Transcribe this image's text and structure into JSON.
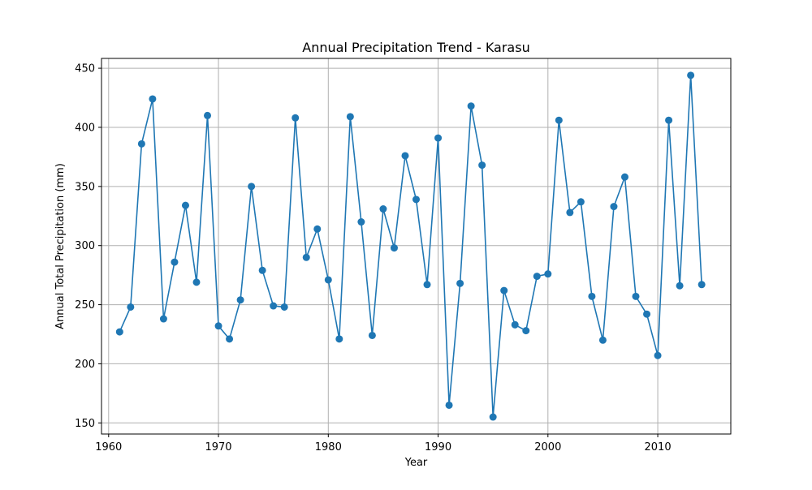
{
  "chart_data": {
    "type": "line",
    "title": "Annual Precipitation Trend - Karasu",
    "xlabel": "Year",
    "ylabel": "Annual Total Precipitation (mm)",
    "xlim": [
      1959.35,
      2016.65
    ],
    "ylim": [
      140.6,
      458.3
    ],
    "xticks": [
      1960,
      1970,
      1980,
      1990,
      2000,
      2010
    ],
    "yticks": [
      150,
      200,
      250,
      300,
      350,
      400,
      450
    ],
    "grid": true,
    "marker": "circle",
    "line_color": "#1f77b4",
    "series": [
      {
        "x": [
          1961,
          1962,
          1963,
          1964,
          1965,
          1966,
          1967,
          1968,
          1969,
          1970,
          1971,
          1972,
          1973,
          1974,
          1975,
          1976,
          1977,
          1978,
          1979,
          1980,
          1981,
          1982,
          1983,
          1984,
          1985,
          1986,
          1987,
          1988,
          1989,
          1990,
          1991,
          1992,
          1993,
          1994,
          1995,
          1996,
          1997,
          1998,
          1999,
          2000,
          2001,
          2002,
          2003,
          2004,
          2005,
          2006,
          2007,
          2008,
          2009,
          2010,
          2011,
          2012,
          2013,
          2014
        ],
        "values": [
          227,
          248,
          386,
          424,
          238,
          286,
          334,
          269,
          410,
          232,
          221,
          254,
          350,
          279,
          249,
          248,
          408,
          290,
          314,
          271,
          221,
          409,
          320,
          224,
          331,
          298,
          376,
          339,
          267,
          391,
          165,
          268,
          418,
          368,
          155,
          262,
          233,
          228,
          274,
          276,
          406,
          328,
          337,
          257,
          220,
          333,
          358,
          257,
          242,
          207,
          406,
          266,
          444,
          267
        ]
      }
    ]
  }
}
